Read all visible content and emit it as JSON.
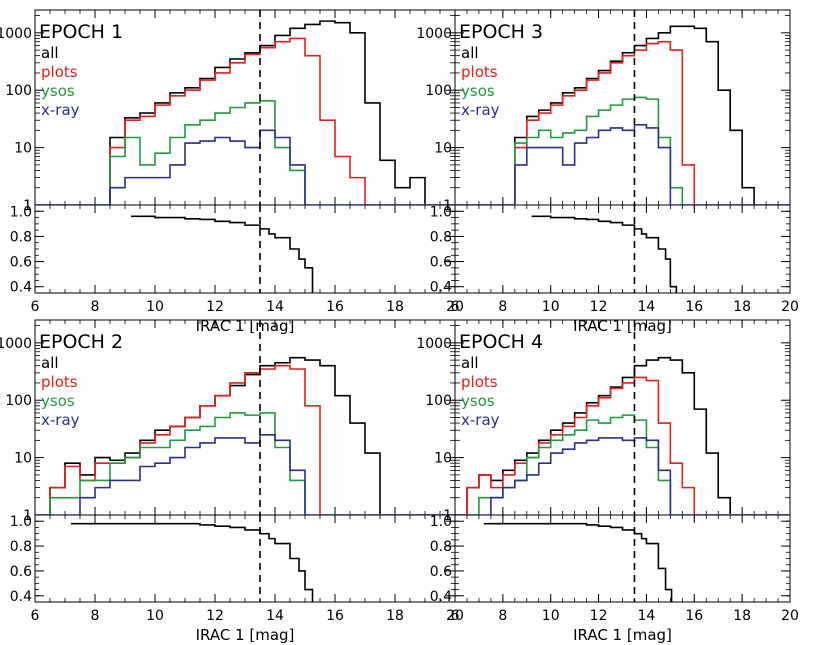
{
  "colors": {
    "all": "#000000",
    "plots": "#e0201b",
    "ysos": "#1f9a3c",
    "x-ray": "#2b2d8f",
    "axis": "#000000"
  },
  "chart_data": [
    {
      "type": "histogram",
      "title": "EPOCH 1",
      "xlabel": "IRAC 1 [mag]",
      "xlim": [
        6,
        20
      ],
      "x_ticks": [
        "6",
        "8",
        "10",
        "12",
        "14",
        "16",
        "18",
        "20"
      ],
      "hist_ylim": [
        1,
        2500
      ],
      "hist_y_ticks": [
        "1",
        "10",
        "100",
        "1000"
      ],
      "ratio_ylim": [
        0.35,
        1.05
      ],
      "ratio_y_ticks": [
        "0.4",
        "0.6",
        "0.8",
        "1.0"
      ],
      "cut_mag": 13.5,
      "bin_edges": [
        8.5,
        9.0,
        9.5,
        10.0,
        10.5,
        11.0,
        11.5,
        12.0,
        12.5,
        13.0,
        13.5,
        14.0,
        14.5,
        15.0,
        15.5,
        16.0,
        16.5,
        17.0,
        17.5,
        18.0,
        18.5,
        19.0
      ],
      "series": [
        {
          "name": "all",
          "values": [
            15,
            33,
            40,
            60,
            90,
            110,
            160,
            250,
            350,
            450,
            600,
            900,
            1200,
            1400,
            1600,
            1500,
            1000,
            60,
            6,
            2,
            3
          ]
        },
        {
          "name": "plots",
          "values": [
            10,
            30,
            35,
            55,
            80,
            100,
            150,
            200,
            300,
            420,
            550,
            700,
            800,
            400,
            30,
            7,
            3,
            1,
            1,
            1,
            1
          ]
        },
        {
          "name": "ysos",
          "values": [
            7,
            15,
            5,
            8,
            15,
            25,
            30,
            40,
            50,
            60,
            65,
            10,
            4,
            1,
            1,
            1,
            1,
            1,
            1,
            1,
            1
          ]
        },
        {
          "name": "x-ray",
          "values": [
            2,
            3,
            3,
            3,
            5,
            12,
            13,
            15,
            13,
            10,
            20,
            15,
            5,
            1,
            1,
            1,
            1,
            1,
            1,
            1,
            1
          ]
        }
      ],
      "ratio": {
        "x": [
          9.2,
          9.5,
          10.0,
          10.5,
          11.0,
          11.5,
          12.0,
          12.5,
          13.0,
          13.5,
          13.8,
          14.0,
          14.5,
          14.8,
          15.0
        ],
        "y": [
          0.96,
          0.96,
          0.95,
          0.95,
          0.94,
          0.935,
          0.92,
          0.91,
          0.89,
          0.86,
          0.82,
          0.79,
          0.7,
          0.62,
          0.55
        ]
      }
    },
    {
      "type": "histogram",
      "title": "EPOCH 3",
      "xlabel": "IRAC 1 [mag]",
      "xlim": [
        6,
        20
      ],
      "x_ticks": [
        "6",
        "8",
        "10",
        "12",
        "14",
        "16",
        "18",
        "20"
      ],
      "hist_ylim": [
        1,
        2500
      ],
      "hist_y_ticks": [
        "1",
        "10",
        "100",
        "1000"
      ],
      "ratio_ylim": [
        0.35,
        1.05
      ],
      "ratio_y_ticks": [
        "0.4",
        "0.6",
        "0.8",
        "1.0"
      ],
      "cut_mag": 13.5,
      "bin_edges": [
        8.5,
        9.0,
        9.5,
        10.0,
        10.5,
        11.0,
        11.5,
        12.0,
        12.5,
        13.0,
        13.5,
        14.0,
        14.5,
        15.0,
        15.5,
        16.0,
        16.5,
        17.0,
        17.5,
        18.0,
        18.5
      ],
      "series": [
        {
          "name": "all",
          "values": [
            15,
            35,
            45,
            60,
            90,
            110,
            160,
            220,
            320,
            450,
            600,
            800,
            1000,
            1300,
            1300,
            1200,
            700,
            100,
            20,
            2
          ]
        },
        {
          "name": "plots",
          "values": [
            10,
            30,
            40,
            55,
            80,
            100,
            150,
            200,
            300,
            400,
            500,
            650,
            700,
            500,
            5,
            1,
            1,
            1,
            1,
            1
          ]
        },
        {
          "name": "ysos",
          "values": [
            12,
            15,
            20,
            15,
            18,
            20,
            35,
            45,
            55,
            70,
            75,
            70,
            15,
            2,
            1,
            1,
            1,
            1,
            1,
            1
          ]
        },
        {
          "name": "x-ray",
          "values": [
            5,
            10,
            10,
            10,
            5,
            12,
            15,
            20,
            22,
            20,
            25,
            22,
            10,
            1,
            1,
            1,
            1,
            1,
            1,
            1
          ]
        }
      ],
      "ratio": {
        "x": [
          9.2,
          9.5,
          10.0,
          10.5,
          11.0,
          11.5,
          12.0,
          12.5,
          13.0,
          13.5,
          13.8,
          14.0,
          14.5,
          14.8,
          15.0
        ],
        "y": [
          0.96,
          0.96,
          0.95,
          0.95,
          0.94,
          0.935,
          0.92,
          0.91,
          0.89,
          0.86,
          0.82,
          0.79,
          0.7,
          0.62,
          0.4
        ]
      }
    },
    {
      "type": "histogram",
      "title": "EPOCH 2",
      "xlabel": "IRAC 1 [mag]",
      "xlim": [
        6,
        20
      ],
      "x_ticks": [
        "6",
        "8",
        "10",
        "12",
        "14",
        "16",
        "18",
        "20"
      ],
      "hist_ylim": [
        1,
        2500
      ],
      "hist_y_ticks": [
        "1",
        "10",
        "100",
        "1000"
      ],
      "ratio_ylim": [
        0.35,
        1.05
      ],
      "ratio_y_ticks": [
        "0.4",
        "0.6",
        "0.8",
        "1.0"
      ],
      "cut_mag": 13.5,
      "bin_edges": [
        6.5,
        7.0,
        7.5,
        8.0,
        8.5,
        9.0,
        9.5,
        10.0,
        10.5,
        11.0,
        11.5,
        12.0,
        12.5,
        13.0,
        13.5,
        14.0,
        14.5,
        15.0,
        15.5,
        16.0,
        16.5,
        17.0,
        17.5
      ],
      "series": [
        {
          "name": "all",
          "values": [
            3,
            8,
            5,
            10,
            9,
            12,
            20,
            30,
            35,
            50,
            80,
            120,
            180,
            280,
            400,
            450,
            550,
            500,
            400,
            120,
            40,
            12
          ]
        },
        {
          "name": "plots",
          "values": [
            3,
            7,
            4,
            8,
            8,
            10,
            18,
            25,
            35,
            50,
            80,
            120,
            200,
            300,
            350,
            400,
            350,
            80,
            1,
            1,
            1,
            1
          ]
        },
        {
          "name": "ysos",
          "values": [
            2,
            2,
            4,
            4,
            8,
            10,
            15,
            15,
            20,
            30,
            35,
            50,
            60,
            55,
            60,
            15,
            4,
            1,
            1,
            1,
            1,
            1
          ]
        },
        {
          "name": "x-ray",
          "values": [
            1,
            1,
            2,
            3,
            4,
            4,
            7,
            8,
            10,
            15,
            18,
            22,
            22,
            18,
            25,
            20,
            6,
            1,
            1,
            1,
            1,
            1
          ]
        }
      ],
      "ratio": {
        "x": [
          7.2,
          7.5,
          8.0,
          9.0,
          10.0,
          11.0,
          11.5,
          12.0,
          12.5,
          13.0,
          13.5,
          13.8,
          14.0,
          14.5,
          14.8,
          15.0
        ],
        "y": [
          0.98,
          0.98,
          0.98,
          0.98,
          0.98,
          0.98,
          0.97,
          0.96,
          0.95,
          0.93,
          0.9,
          0.86,
          0.82,
          0.7,
          0.6,
          0.45
        ]
      }
    },
    {
      "type": "histogram",
      "title": "EPOCH 4",
      "xlabel": "IRAC 1 [mag]",
      "xlim": [
        6,
        20
      ],
      "x_ticks": [
        "6",
        "8",
        "10",
        "12",
        "14",
        "16",
        "18",
        "20"
      ],
      "hist_ylim": [
        1,
        2500
      ],
      "hist_y_ticks": [
        "1",
        "10",
        "100",
        "1000"
      ],
      "ratio_ylim": [
        0.35,
        1.05
      ],
      "ratio_y_ticks": [
        "0.4",
        "0.6",
        "0.8",
        "1.0"
      ],
      "cut_mag": 13.5,
      "bin_edges": [
        6.5,
        7.0,
        7.5,
        8.0,
        8.5,
        9.0,
        9.5,
        10.0,
        10.5,
        11.0,
        11.5,
        12.0,
        12.5,
        13.0,
        13.5,
        14.0,
        14.5,
        15.0,
        15.5,
        16.0,
        16.5,
        17.0,
        17.5
      ],
      "series": [
        {
          "name": "all",
          "values": [
            3,
            5,
            4,
            6,
            9,
            12,
            20,
            30,
            40,
            60,
            90,
            120,
            170,
            250,
            400,
            500,
            550,
            500,
            300,
            70,
            12,
            2
          ]
        },
        {
          "name": "plots",
          "values": [
            3,
            5,
            3,
            5,
            8,
            10,
            18,
            25,
            35,
            50,
            80,
            110,
            160,
            200,
            250,
            220,
            40,
            8,
            3,
            1,
            1,
            1
          ]
        },
        {
          "name": "ysos",
          "values": [
            1,
            2,
            2,
            3,
            4,
            10,
            15,
            20,
            25,
            30,
            45,
            40,
            50,
            55,
            45,
            15,
            4,
            1,
            1,
            1,
            1,
            1
          ]
        },
        {
          "name": "x-ray",
          "values": [
            1,
            1,
            2,
            3,
            4,
            5,
            8,
            12,
            14,
            18,
            20,
            22,
            22,
            20,
            22,
            20,
            6,
            1,
            1,
            1,
            1,
            1
          ]
        }
      ],
      "ratio": {
        "x": [
          7.2,
          7.5,
          8.0,
          9.0,
          10.0,
          11.0,
          11.5,
          12.0,
          12.5,
          13.0,
          13.5,
          13.8,
          14.0,
          14.5,
          14.8
        ],
        "y": [
          0.98,
          0.98,
          0.98,
          0.98,
          0.98,
          0.98,
          0.97,
          0.96,
          0.95,
          0.93,
          0.9,
          0.86,
          0.82,
          0.62,
          0.45
        ]
      }
    }
  ]
}
